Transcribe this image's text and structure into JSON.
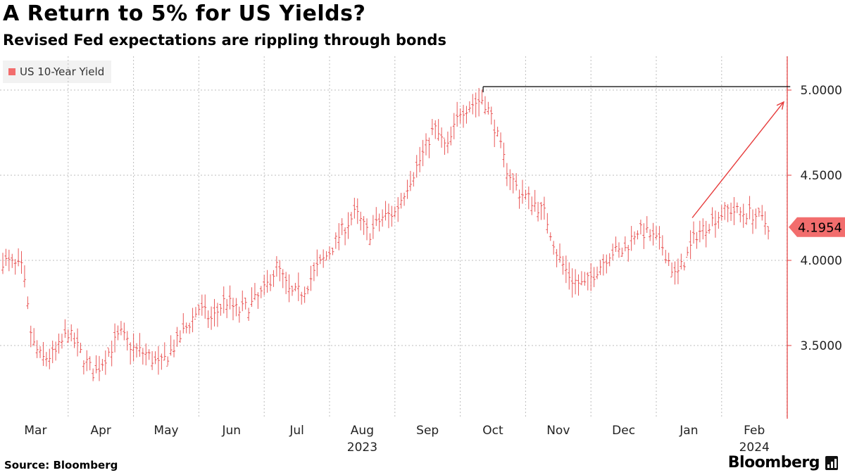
{
  "title": "A Return to 5% for US Yields?",
  "subtitle": "Revised Fed expectations are rippling through bonds",
  "legend_label": "US 10-Year Yield",
  "source": "Source: Bloomberg",
  "brand": "Bloomberg",
  "colors": {
    "series": "#e63b3b",
    "legend": "#f26d6d",
    "grid": "#bdbdbd",
    "annotation": "#000000"
  },
  "chart_data": {
    "type": "line",
    "style": "ohlc-bars",
    "title": "A Return to 5% for US Yields?",
    "xlabel": "",
    "ylabel": "",
    "ylim": [
      3.1,
      5.2
    ],
    "xlim": [
      0,
      12.05
    ],
    "y_ticks": [
      5.0,
      4.5,
      4.0,
      3.5
    ],
    "y_tick_labels": [
      "5.0000",
      "4.5000",
      "4.0000",
      "3.5000"
    ],
    "x_month_labels": [
      "Mar",
      "Apr",
      "May",
      "Jun",
      "Jul",
      "Aug",
      "Sep",
      "Oct",
      "Nov",
      "Dec",
      "Jan",
      "Feb"
    ],
    "x_year_labels": [
      {
        "label": "2023",
        "month_index": 5
      },
      {
        "label": "2024",
        "month_index": 11
      }
    ],
    "series": [
      {
        "name": "US 10-Year Yield",
        "x": [
          0.0,
          0.3,
          0.45,
          0.6,
          0.8,
          1.0,
          1.2,
          1.4,
          1.6,
          1.8,
          2.0,
          2.2,
          2.4,
          2.6,
          2.8,
          3.0,
          3.2,
          3.4,
          3.6,
          3.8,
          4.0,
          4.2,
          4.4,
          4.6,
          4.8,
          5.0,
          5.2,
          5.4,
          5.6,
          5.8,
          6.0,
          6.2,
          6.4,
          6.6,
          6.8,
          7.0,
          7.2,
          7.35,
          7.5,
          7.7,
          7.9,
          8.1,
          8.3,
          8.5,
          8.7,
          8.9,
          9.1,
          9.3,
          9.5,
          9.7,
          9.9,
          10.1,
          10.3,
          10.5,
          10.6,
          10.7,
          10.9,
          11.1,
          11.3,
          11.5,
          11.75
        ],
        "values": [
          4.0,
          3.95,
          3.52,
          3.42,
          3.45,
          3.58,
          3.45,
          3.33,
          3.45,
          3.57,
          3.48,
          3.45,
          3.38,
          3.48,
          3.6,
          3.72,
          3.65,
          3.77,
          3.7,
          3.74,
          3.82,
          3.97,
          3.8,
          3.82,
          3.95,
          4.05,
          4.18,
          4.28,
          4.15,
          4.25,
          4.28,
          4.45,
          4.6,
          4.78,
          4.65,
          4.88,
          4.92,
          4.95,
          4.82,
          4.55,
          4.4,
          4.35,
          4.27,
          4.02,
          3.89,
          3.85,
          3.95,
          4.05,
          4.05,
          4.18,
          4.15,
          4.08,
          3.9,
          4.05,
          4.15,
          4.18,
          4.25,
          4.3,
          4.28,
          4.27,
          4.1954
        ]
      }
    ],
    "annotations": [
      {
        "type": "hline",
        "y": 5.02,
        "x_from": 7.35,
        "x_to": 12.05,
        "color": "#000000"
      },
      {
        "type": "arrow",
        "from": [
          10.55,
          4.25
        ],
        "to": [
          11.95,
          4.93
        ],
        "color": "#e63b3b"
      },
      {
        "type": "last-value-label",
        "value": "4.1954",
        "y": 4.1954
      }
    ]
  }
}
